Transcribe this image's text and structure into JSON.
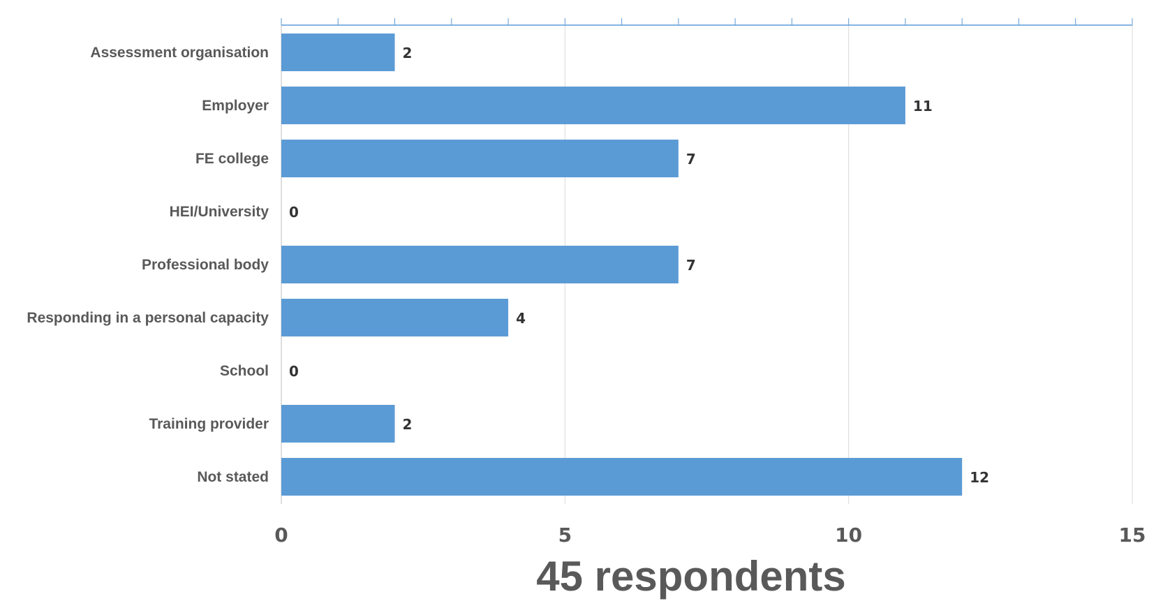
{
  "chart_data": {
    "type": "bar",
    "orientation": "horizontal",
    "categories": [
      "Assessment organisation",
      "Employer",
      "FE college",
      "HEI/University",
      "Professional body",
      "Responding in a personal capacity",
      "School",
      "Training provider",
      "Not stated"
    ],
    "values": [
      2,
      11,
      7,
      0,
      7,
      4,
      0,
      2,
      12
    ],
    "xlabel": "45 respondents",
    "ylabel": "",
    "xlim": [
      0,
      15
    ],
    "x_ticks": [
      0,
      5,
      10,
      15
    ],
    "x_minor_step": 1,
    "grid": "vertical major gridlines",
    "legend": "none",
    "bar_color": "#5b9bd5"
  }
}
